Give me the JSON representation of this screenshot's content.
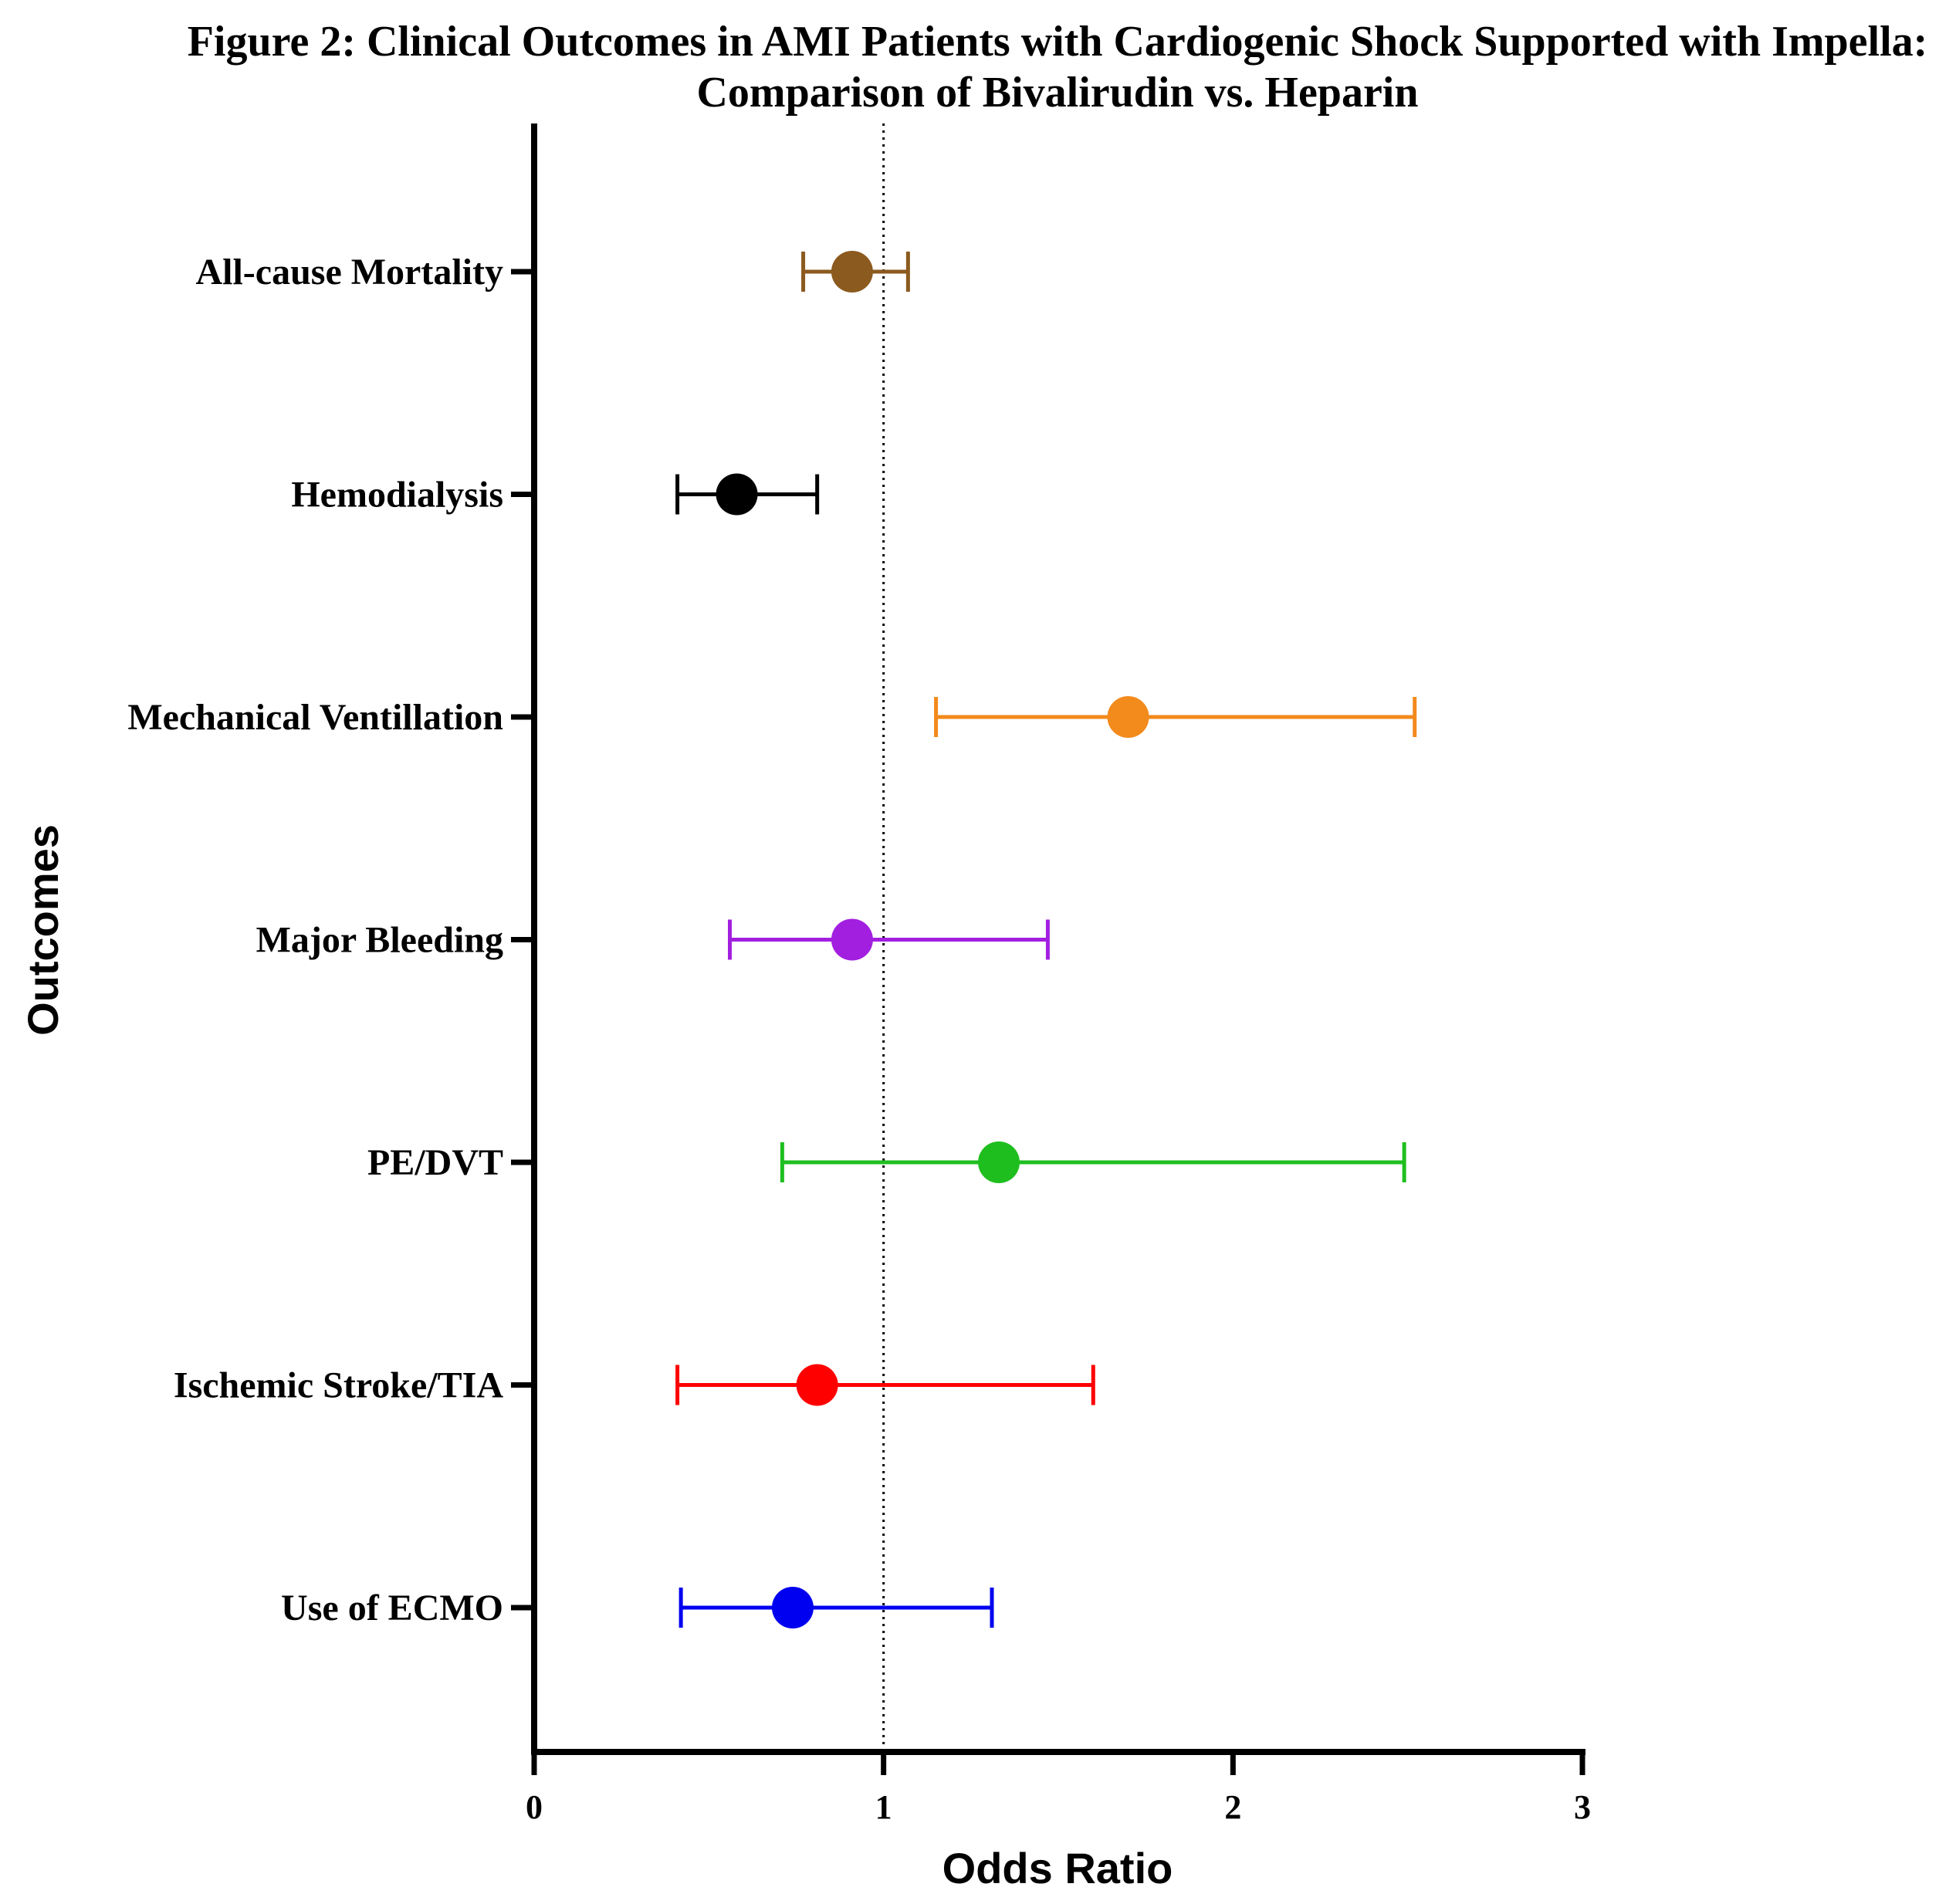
{
  "chart_data": {
    "type": "scatter",
    "subtype": "forest-plot",
    "title_lines": [
      "Figure 2: Clinical Outcomes in AMI Patients with Cardiogenic Shock Supported with Impella:",
      "Comparison of Bivalirudin vs. Heparin"
    ],
    "xlabel": "Odds Ratio",
    "ylabel": "Outcomes",
    "xlim": [
      0,
      3
    ],
    "xticks": [
      "0",
      "1",
      "2",
      "3"
    ],
    "reference_line": 1,
    "outcomes": [
      {
        "label": "All-cause Mortality",
        "or": 0.91,
        "ci_low": 0.77,
        "ci_high": 1.07,
        "color": "#8B5A1E"
      },
      {
        "label": "Hemodialysis",
        "or": 0.58,
        "ci_low": 0.41,
        "ci_high": 0.81,
        "color": "#000000"
      },
      {
        "label": "Mechanical Ventillation",
        "or": 1.7,
        "ci_low": 1.15,
        "ci_high": 2.52,
        "color": "#F28A1C"
      },
      {
        "label": "Major Bleeding",
        "or": 0.91,
        "ci_low": 0.56,
        "ci_high": 1.47,
        "color": "#A31FE0"
      },
      {
        "label": "PE/DVT",
        "or": 1.33,
        "ci_low": 0.71,
        "ci_high": 2.49,
        "color": "#1FBE1F"
      },
      {
        "label": "Ischemic Stroke/TIA",
        "or": 0.81,
        "ci_low": 0.41,
        "ci_high": 1.6,
        "color": "#FF0000"
      },
      {
        "label": "Use of ECMO",
        "or": 0.74,
        "ci_low": 0.42,
        "ci_high": 1.31,
        "color": "#0000F0"
      }
    ]
  }
}
